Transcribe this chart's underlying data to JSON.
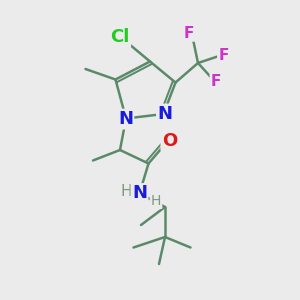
{
  "bg_color": "#ebebeb",
  "bond_color": "#5a8a6a",
  "bond_width": 1.8,
  "atom_colors": {
    "N": "#1a1add",
    "O": "#dd1a1a",
    "Cl": "#22cc22",
    "F": "#cc33cc",
    "H": "#7a9a80"
  },
  "font_size_large": 13,
  "font_size_med": 11,
  "font_size_small": 10
}
